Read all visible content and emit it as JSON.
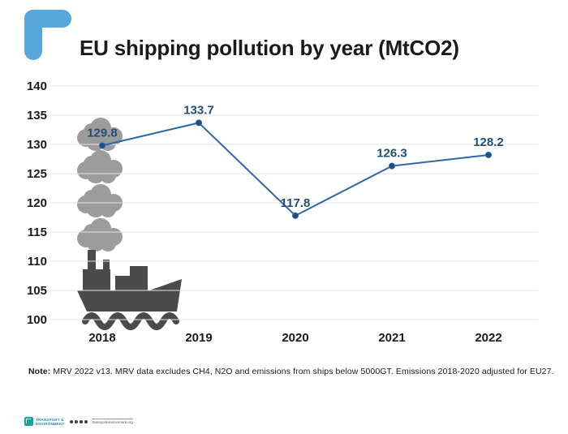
{
  "header": {
    "title": "EU shipping pollution by year (MtCO2)"
  },
  "colors": {
    "accent_bracket_blue": "#58a7dc",
    "line_blue": "#2c67ab",
    "point_label_navy": "#1f4e79",
    "axis_text": "#1a1a1a",
    "gridline": "#e3e3e3",
    "cloud_gray": "#9c9c9c",
    "ship_gray": "#4b4b4b",
    "title_text": "#1b1b1b"
  },
  "chart_data": {
    "type": "line",
    "title": "EU shipping pollution by year (MtCO2)",
    "unit": "MtCO2",
    "categories": [
      "2018",
      "2019",
      "2020",
      "2021",
      "2022"
    ],
    "values": [
      129.8,
      133.7,
      117.8,
      126.3,
      128.2
    ],
    "data_labels": [
      "129.8",
      "133.7",
      "117.8",
      "126.3",
      "128.2"
    ],
    "xlabel": "",
    "ylabel": "",
    "ylim": [
      100,
      140
    ],
    "ytick_step": 5,
    "ytick_labels": [
      "100",
      "105",
      "110",
      "115",
      "120",
      "125",
      "130",
      "135",
      "140"
    ],
    "grid": "horizontal",
    "legend": "none"
  },
  "note": {
    "label": "Note:",
    "text": " MRV 2022 v13. MRV data excludes CH4, N2O and emissions from ships below 5000GT. Emissions 2018-2020 adjusted for EU27."
  },
  "footer": {
    "org_line1": "TRANSPORT &",
    "org_line2": "ENVIRONMENT",
    "social_icons": [
      "twitter-icon",
      "facebook-icon",
      "linkedin-icon",
      "youtube-icon"
    ],
    "website": "transportenvironment.org"
  }
}
